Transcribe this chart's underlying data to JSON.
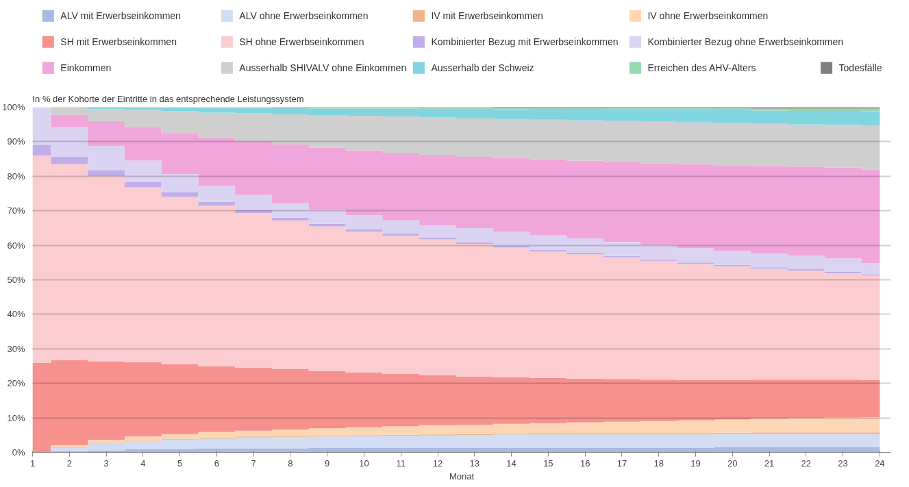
{
  "chart_data": {
    "type": "area",
    "stacked": true,
    "ylabel": "In % der Kohorte der Eintritte in das entsprechende Leistungssystem",
    "xlabel": "Monat",
    "x": [
      1,
      2,
      3,
      4,
      5,
      6,
      7,
      8,
      9,
      10,
      11,
      12,
      13,
      14,
      15,
      16,
      17,
      18,
      19,
      20,
      21,
      22,
      23,
      24
    ],
    "xlim": [
      1,
      24.3
    ],
    "xticks": [
      1,
      2,
      3,
      4,
      5,
      6,
      7,
      8,
      9,
      10,
      11,
      12,
      13,
      14,
      15,
      16,
      17,
      18,
      19,
      20,
      21,
      22,
      23,
      24
    ],
    "ylim": [
      0,
      100
    ],
    "yticks": [
      {
        "value": 0,
        "label": "0%"
      },
      {
        "value": 10,
        "label": "10%"
      },
      {
        "value": 20,
        "label": "20%"
      },
      {
        "value": 30,
        "label": "30%"
      },
      {
        "value": 40,
        "label": "40%"
      },
      {
        "value": 50,
        "label": "50%"
      },
      {
        "value": 60,
        "label": "60%"
      },
      {
        "value": 70,
        "label": "70%"
      },
      {
        "value": 80,
        "label": "80%"
      },
      {
        "value": 90,
        "label": "90%"
      },
      {
        "value": 100,
        "label": "100%"
      }
    ],
    "grid": "y",
    "legend": "top",
    "series": [
      {
        "name": "ALV mit Erwerbseinkommen",
        "color": "#a9b9df",
        "values": [
          0,
          0.3,
          0.6,
          0.9,
          1.0,
          1.1,
          1.2,
          1.2,
          1.3,
          1.3,
          1.3,
          1.3,
          1.3,
          1.3,
          1.4,
          1.4,
          1.4,
          1.4,
          1.4,
          1.6,
          1.6,
          1.6,
          1.6,
          1.6
        ]
      },
      {
        "name": "ALV ohne Erwerbseinkommen",
        "color": "#d2dcf3",
        "values": [
          0,
          1.1,
          2.0,
          2.3,
          2.7,
          2.9,
          3.1,
          3.3,
          3.3,
          3.4,
          3.5,
          3.6,
          3.7,
          3.9,
          3.8,
          3.8,
          3.8,
          3.8,
          3.8,
          3.7,
          3.7,
          3.7,
          3.7,
          3.7
        ]
      },
      {
        "name": "IV mit Erwerbseinkommen",
        "color": "#f0b48a",
        "values": [
          0,
          0.1,
          0.2,
          0.2,
          0.2,
          0.3,
          0.3,
          0.3,
          0.3,
          0.3,
          0.3,
          0.3,
          0.3,
          0.3,
          0.4,
          0.4,
          0.4,
          0.4,
          0.4,
          0.4,
          0.5,
          0.5,
          0.5,
          0.5
        ]
      },
      {
        "name": "IV ohne Erwerbseinkommen",
        "color": "#fdd7b4",
        "values": [
          0,
          0.6,
          0.8,
          1.2,
          1.4,
          1.6,
          1.7,
          1.8,
          2.1,
          2.3,
          2.5,
          2.7,
          2.7,
          2.8,
          2.9,
          3.1,
          3.3,
          3.5,
          3.7,
          3.8,
          4.0,
          4.2,
          4.3,
          4.4
        ]
      },
      {
        "name": "SH mit Erwerbseinkommen",
        "color": "#f6918e",
        "values": [
          26,
          24.6,
          22.8,
          21.5,
          20.3,
          19.1,
          18.3,
          17.5,
          16.5,
          15.8,
          15.1,
          14.4,
          13.9,
          13.5,
          13.1,
          12.7,
          12.4,
          12.0,
          11.7,
          11.5,
          11.3,
          11.1,
          11.0,
          10.8
        ]
      },
      {
        "name": "SH ohne Erwerbseinkommen",
        "color": "#fbcdd0",
        "values": [
          60,
          56.8,
          53.6,
          50.7,
          48.4,
          46.5,
          44.7,
          43.1,
          42.0,
          40.9,
          40.1,
          39.4,
          38.5,
          37.6,
          36.6,
          36.0,
          35.2,
          34.4,
          33.6,
          32.9,
          32.1,
          31.6,
          30.8,
          30.2
        ]
      },
      {
        "name": "Kombinierter Bezug mit Erwerbseinkommen",
        "color": "#bfaeea",
        "values": [
          3,
          2.2,
          1.8,
          1.5,
          1.3,
          1.1,
          0.9,
          0.8,
          0.7,
          0.7,
          0.6,
          0.6,
          0.5,
          0.5,
          0.5,
          0.5,
          0.4,
          0.4,
          0.4,
          0.4,
          0.4,
          0.4,
          0.4,
          0.4
        ]
      },
      {
        "name": "Kombinierter Bezug ohne Erwerbseinkommen",
        "color": "#dbd3f2",
        "values": [
          11,
          8.5,
          7.0,
          6.2,
          5.3,
          4.6,
          4.4,
          4.2,
          4.1,
          4.0,
          3.8,
          3.4,
          4.1,
          4.1,
          4.3,
          4.1,
          4.1,
          4.1,
          4.2,
          4.1,
          4.0,
          3.9,
          3.9,
          3.2
        ]
      },
      {
        "name": "Einkommen",
        "color": "#f0a6da",
        "values": [
          0,
          3.6,
          7.2,
          9.7,
          11.9,
          14.0,
          15.6,
          17.0,
          18.0,
          18.8,
          19.6,
          20.5,
          20.6,
          21.3,
          21.9,
          22.5,
          23.2,
          23.8,
          24.3,
          24.8,
          25.4,
          25.8,
          26.3,
          27.2
        ]
      },
      {
        "name": "Ausserhalb SHIVALV ohne Einkommen",
        "color": "#cfcfcf",
        "values": [
          0,
          2.1,
          3.4,
          5.0,
          6.3,
          7.2,
          8.0,
          8.7,
          9.4,
          10.0,
          10.5,
          10.9,
          11.2,
          11.3,
          11.5,
          11.7,
          11.8,
          12.0,
          12.1,
          12.2,
          12.2,
          12.2,
          12.4,
          12.6
        ]
      },
      {
        "name": "Ausserhalb der Schweiz",
        "color": "#80d5e1",
        "values": [
          0,
          0,
          0.5,
          0.7,
          1.0,
          1.4,
          1.6,
          1.8,
          1.9,
          2.1,
          2.3,
          2.4,
          2.7,
          2.8,
          2.9,
          3.1,
          3.2,
          3.4,
          3.6,
          3.7,
          3.8,
          3.9,
          4.0,
          4.2
        ]
      },
      {
        "name": "Erreichen des AHV-Alters",
        "color": "#98d8b0",
        "values": [
          0,
          0,
          0,
          0,
          0.1,
          0.1,
          0.1,
          0.1,
          0.2,
          0.2,
          0.2,
          0.3,
          0.3,
          0.3,
          0.4,
          0.4,
          0.5,
          0.5,
          0.5,
          0.6,
          0.6,
          0.7,
          0.7,
          0.8
        ]
      },
      {
        "name": "Todesfälle",
        "color": "#7f7f7f",
        "values": [
          0,
          0.1,
          0.1,
          0.1,
          0.1,
          0.1,
          0.1,
          0.2,
          0.2,
          0.2,
          0.2,
          0.2,
          0.2,
          0.3,
          0.3,
          0.3,
          0.3,
          0.3,
          0.3,
          0.3,
          0.4,
          0.4,
          0.4,
          0.4
        ]
      }
    ]
  }
}
